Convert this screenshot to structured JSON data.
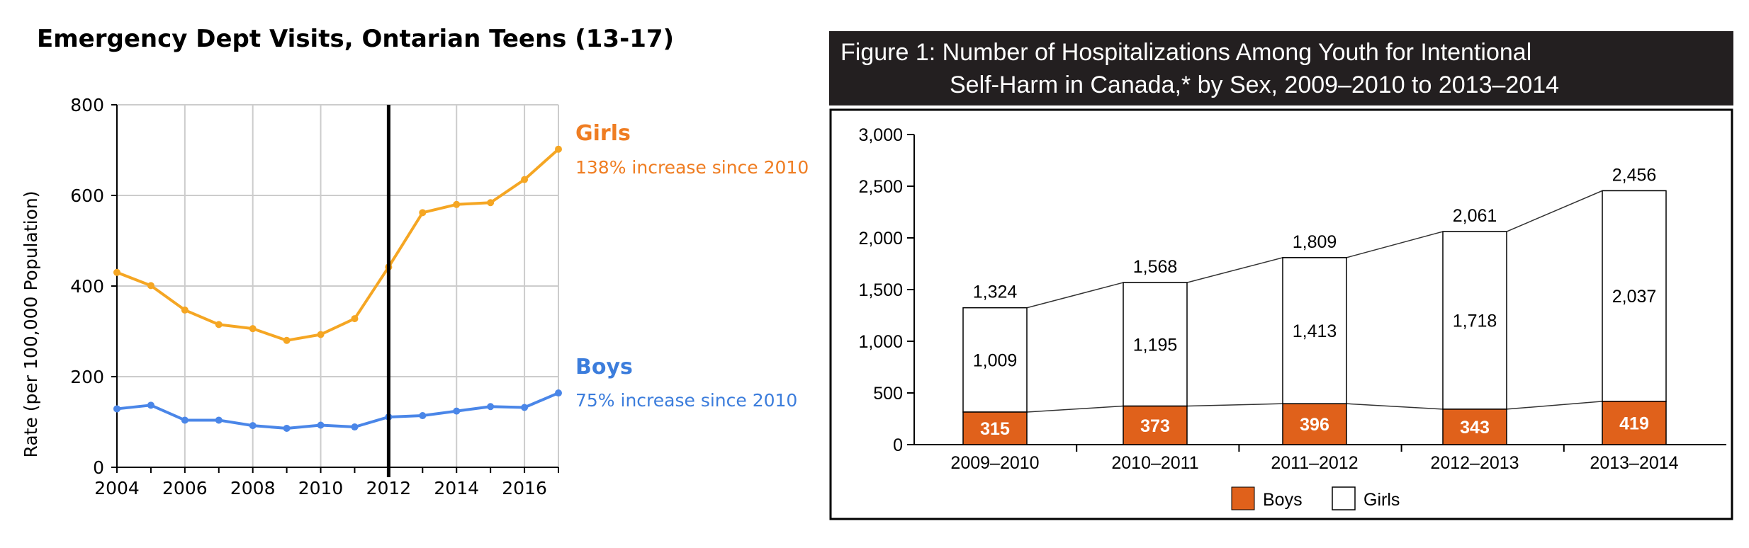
{
  "chart_data": [
    {
      "type": "line",
      "title": "Emergency Dept Visits, Ontarian Teens (13-17)",
      "ylabel": "Rate (per 100,000 Population)",
      "xlabel": "",
      "xlim": [
        2004,
        2017
      ],
      "ylim": [
        0,
        800
      ],
      "x_ticks": [
        2004,
        2006,
        2008,
        2010,
        2012,
        2014,
        2016
      ],
      "y_ticks": [
        0,
        200,
        400,
        600,
        800
      ],
      "grid": true,
      "marker_x": 2012,
      "x": [
        2004,
        2005,
        2006,
        2007,
        2008,
        2009,
        2010,
        2011,
        2012,
        2013,
        2014,
        2015,
        2016,
        2017
      ],
      "series": [
        {
          "name": "Girls",
          "note": "138% increase since 2010",
          "color": "#f5a623",
          "label_color": "#ef7d22",
          "values": [
            430,
            401,
            347,
            315,
            306,
            280,
            293,
            328,
            442,
            562,
            580,
            584,
            635,
            702
          ]
        },
        {
          "name": "Boys",
          "note": "75% increase since 2010",
          "color": "#4a86e8",
          "label_color": "#3c7ddc",
          "values": [
            129,
            137,
            104,
            104,
            92,
            86,
            93,
            89,
            111,
            114,
            124,
            134,
            132,
            164
          ]
        }
      ]
    },
    {
      "type": "bar",
      "stacked": true,
      "title_line1": "Figure 1: Number of Hospitalizations Among Youth for Intentional",
      "title_line2": "Self-Harm in Canada,* by Sex, 2009–2010 to 2013–2014",
      "ylim": [
        0,
        3000
      ],
      "y_ticks": [
        0,
        500,
        1000,
        1500,
        2000,
        2500,
        3000
      ],
      "y_tick_labels": [
        "0",
        "500",
        "1,000",
        "1,500",
        "2,000",
        "2,500",
        "3,000"
      ],
      "categories": [
        "2009–2010",
        "2010–2011",
        "2011–2012",
        "2012–2013",
        "2013–2014"
      ],
      "totals": [
        "1,324",
        "1,568",
        "1,809",
        "2,061",
        "2,456"
      ],
      "total_values": [
        1324,
        1568,
        1809,
        2061,
        2456
      ],
      "legend_position": "bottom",
      "series": [
        {
          "name": "Boys",
          "color": "#e0611b",
          "values": [
            315,
            373,
            396,
            343,
            419
          ],
          "labels": [
            "315",
            "373",
            "396",
            "343",
            "419"
          ]
        },
        {
          "name": "Girls",
          "color": "#ffffff",
          "values": [
            1009,
            1195,
            1413,
            1718,
            2037
          ],
          "labels": [
            "1,009",
            "1,195",
            "1,413",
            "1,718",
            "2,037"
          ]
        }
      ]
    }
  ]
}
